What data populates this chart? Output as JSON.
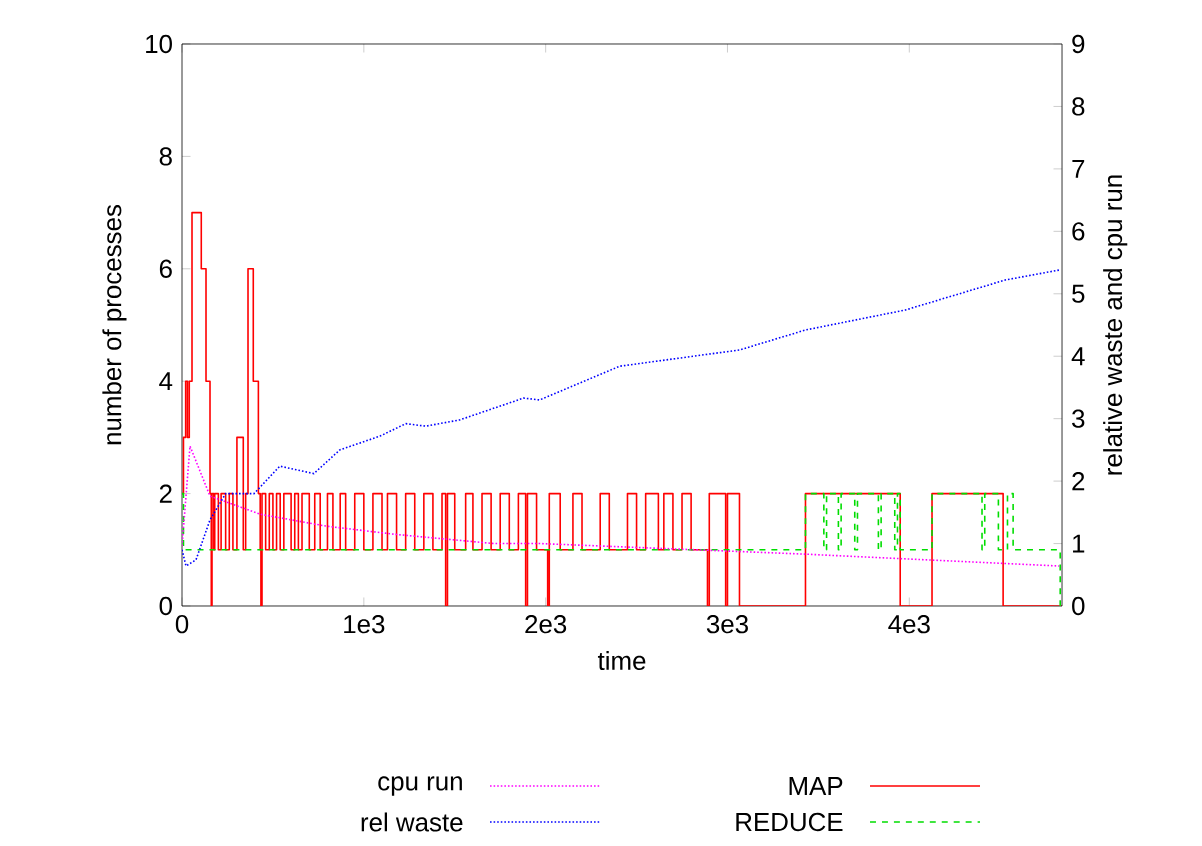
{
  "chart_data": {
    "type": "step",
    "xlabel": "time",
    "ylabel": "number of processes",
    "y2label": "relative waste and cpu run",
    "xlim": [
      0,
      4840
    ],
    "xticks": [
      0,
      {
        "value": 1000,
        "label": "1e3"
      },
      {
        "value": 2000,
        "label": "2e3"
      },
      {
        "value": 3000,
        "label": "3e3"
      },
      {
        "value": 4000,
        "label": "4e3"
      }
    ],
    "ylim": [
      0,
      10
    ],
    "yticks": [
      0,
      2,
      4,
      6,
      8,
      10
    ],
    "y2lim": [
      0,
      9
    ],
    "y2ticks": [
      0,
      1,
      2,
      3,
      4,
      5,
      6,
      7,
      8,
      9
    ],
    "legend": "bottom",
    "grid": false,
    "series": [
      {
        "name": "cpu run",
        "type": "line",
        "axis": "y2",
        "color": "#ff00ff",
        "line_style": "dotted",
        "x": [
          0,
          44,
          154,
          430,
          790,
          1165,
          1714,
          1967,
          3430,
          4824
        ],
        "values": [
          0.96,
          2.56,
          1.76,
          1.47,
          1.28,
          1.15,
          1.0,
          1.0,
          0.83,
          0.64
        ]
      },
      {
        "name": "rel waste",
        "type": "line",
        "axis": "y2",
        "color": "#0000ff",
        "line_style": "dotted",
        "x": [
          0,
          22,
          77,
          154,
          240,
          396,
          538,
          725,
          868,
          1088,
          1231,
          1341,
          1527,
          1879,
          1967,
          2407,
          3066,
          3429,
          3978,
          4527,
          4824
        ],
        "values": [
          0.9,
          0.64,
          0.74,
          1.38,
          1.8,
          1.8,
          2.24,
          2.12,
          2.5,
          2.72,
          2.92,
          2.88,
          2.98,
          3.33,
          3.3,
          3.84,
          4.1,
          4.42,
          4.74,
          5.22,
          5.38
        ]
      },
      {
        "name": "MAP",
        "color": "#ff0000",
        "line_style": "solid",
        "x": [
          0,
          8,
          20,
          30,
          40,
          55,
          106,
          132,
          154,
          161,
          165,
          175,
          180,
          200,
          215,
          240,
          260,
          280,
          302,
          337,
          350,
          363,
          392,
          420,
          430,
          434,
          440,
          460,
          480,
          500,
          520,
          540,
          560,
          600,
          620,
          640,
          660,
          700,
          730,
          760,
          800,
          830,
          870,
          900,
          950,
          1000,
          1050,
          1100,
          1130,
          1180,
          1230,
          1280,
          1330,
          1380,
          1430,
          1450,
          1460,
          1500,
          1560,
          1600,
          1650,
          1700,
          1750,
          1800,
          1850,
          1890,
          1900,
          1950,
          2011,
          2020,
          2080,
          2150,
          2200,
          2300,
          2350,
          2450,
          2500,
          2550,
          2620,
          2650,
          2700,
          2750,
          2800,
          2890,
          2900,
          2990,
          3000,
          3066,
          3429,
          3950,
          4125,
          4516,
          4840
        ],
        "values": [
          2,
          3,
          4,
          3,
          4,
          7,
          6,
          4,
          2,
          0,
          2,
          1,
          2,
          1,
          2,
          1,
          2,
          1,
          3,
          1,
          2,
          6,
          4,
          2,
          1,
          0,
          2,
          1,
          2,
          1,
          2,
          1,
          2,
          1,
          2,
          1,
          2,
          1,
          2,
          1,
          2,
          1,
          2,
          1,
          2,
          1,
          2,
          1,
          2,
          1,
          2,
          1,
          2,
          1,
          2,
          0,
          2,
          1,
          2,
          1,
          2,
          1,
          2,
          1,
          2,
          0,
          2,
          1,
          0,
          2,
          1,
          2,
          1,
          2,
          1,
          2,
          1,
          2,
          1,
          2,
          1,
          2,
          1,
          0,
          2,
          0,
          2,
          0,
          2,
          0,
          2,
          0,
          0
        ]
      },
      {
        "name": "REDUCE",
        "color": "#00dd00",
        "line_style": "dashed",
        "x": [
          0,
          8,
          3429,
          3530,
          3545,
          3610,
          3625,
          3700,
          3715,
          3830,
          3845,
          3920,
          3935,
          3950,
          4125,
          4400,
          4415,
          4490,
          4540,
          4571,
          4830,
          4840
        ],
        "values": [
          2,
          1,
          2,
          1,
          2,
          1,
          2,
          1,
          2,
          1,
          2,
          1,
          2,
          1,
          2,
          1,
          2,
          1,
          2,
          1,
          0,
          0
        ]
      }
    ]
  }
}
